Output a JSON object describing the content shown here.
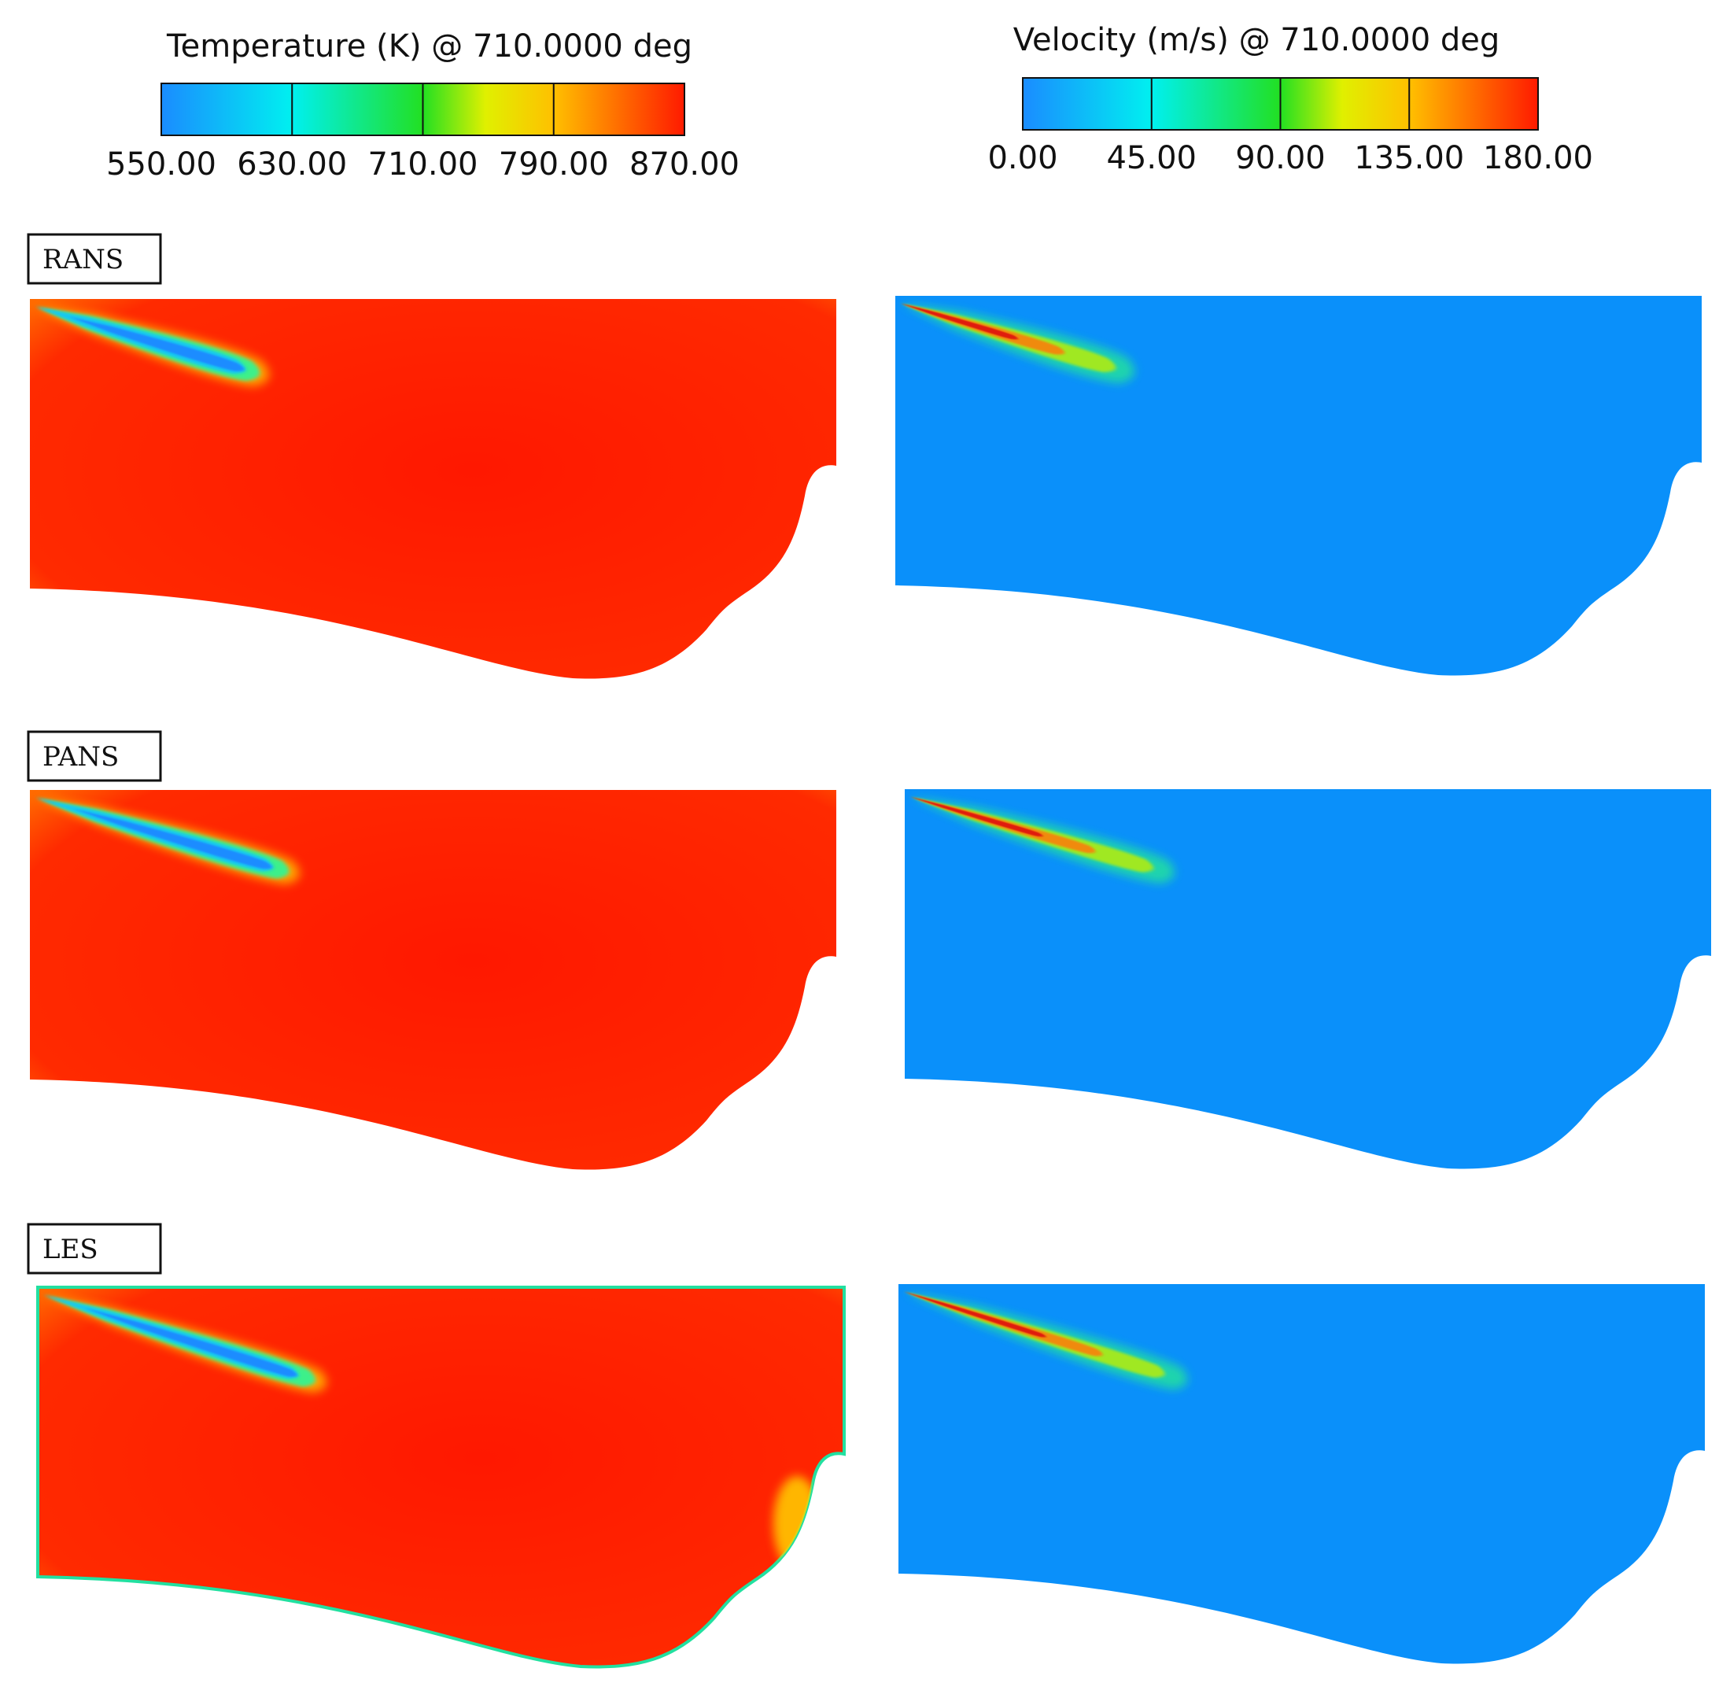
{
  "colorbars": [
    {
      "id": "temperature",
      "title": "Temperature (K) @ 710.0000 deg",
      "ticks": [
        "550.00",
        "630.00",
        "710.00",
        "790.00",
        "870.00"
      ],
      "min": 550,
      "max": 870,
      "colormap": [
        "#1a8cff",
        "#00f0f0",
        "#22e022",
        "#f5f500",
        "#ff9a00",
        "#ff1a00"
      ]
    },
    {
      "id": "velocity",
      "title": "Velocity (m/s) @ 710.0000 deg",
      "ticks": [
        "0.00",
        "45.00",
        "90.00",
        "135.00",
        "180.00"
      ],
      "min": 0,
      "max": 180,
      "colormap": [
        "#1a8cff",
        "#00f0f0",
        "#22e022",
        "#f5f500",
        "#ff9a00",
        "#ff1a00"
      ]
    }
  ],
  "rows": [
    {
      "label": "RANS"
    },
    {
      "label": "PANS"
    },
    {
      "label": "LES"
    }
  ],
  "fields": {
    "temperature": {
      "background": "#ff1e00",
      "edge": "#ff7a00",
      "jet_core": "#1a8cff",
      "jet_shell": "#3ef08a"
    },
    "velocity": {
      "background": "#0a90fa",
      "edge": "#0a90fa",
      "jet_core": "#e01a0a",
      "jet_shell": "#27d86a"
    }
  }
}
